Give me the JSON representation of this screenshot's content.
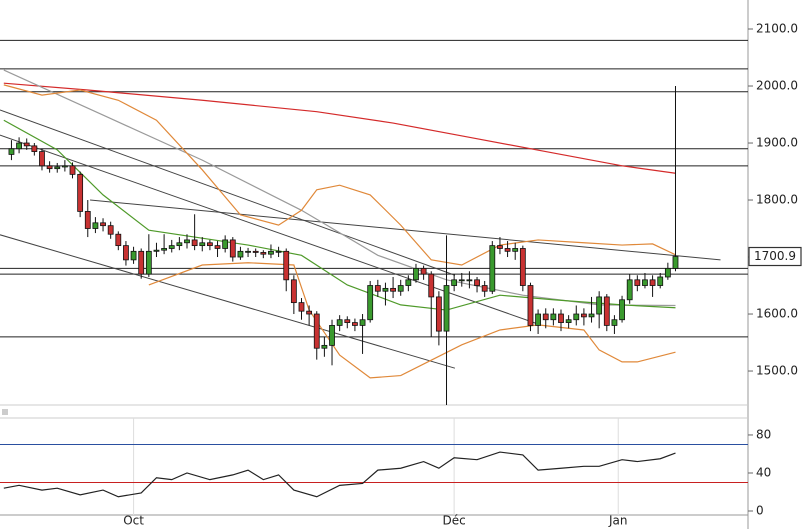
{
  "chart_data": [
    {
      "type": "candlestick",
      "xlim": [
        -1.5,
        96.5
      ],
      "ylim": [
        1440.4,
        2150.9
      ],
      "yticks": [
        {
          "value": 1500,
          "label": "1500.0"
        },
        {
          "value": 1600,
          "label": "1600.0"
        },
        {
          "value": 1700,
          "label": "1700.0"
        },
        {
          "value": 1800,
          "label": "1800.0"
        },
        {
          "value": 1900,
          "label": "1900.0"
        },
        {
          "value": 2000,
          "label": "2000.0"
        },
        {
          "value": 2100,
          "label": "2100.0"
        }
      ],
      "up_color": "#3a9a2e",
      "down_color": "#c83232",
      "open": [
        1880,
        1890,
        1900,
        1895,
        1885,
        1860,
        1855,
        1858,
        1860,
        1845,
        1780,
        1750,
        1760,
        1755,
        1740,
        1720,
        1695,
        1710,
        1670,
        1710,
        1712,
        1715,
        1720,
        1725,
        1730,
        1720,
        1725,
        1720,
        1715,
        1730,
        1700,
        1710,
        1710,
        1708,
        1705,
        1710,
        1710,
        1660,
        1620,
        1605,
        1600,
        1540,
        1545,
        1580,
        1590,
        1585,
        1580,
        1590,
        1650,
        1640,
        1645,
        1640,
        1650,
        1660,
        1680,
        1670,
        1630,
        1570,
        1650,
        1660,
        1660,
        1660,
        1650,
        1640,
        1720,
        1715,
        1710,
        1715,
        1650,
        1580,
        1600,
        1590,
        1600,
        1585,
        1590,
        1600,
        1595,
        1600,
        1630,
        1580,
        1590,
        1625,
        1660,
        1650,
        1660,
        1650,
        1665,
        1680
      ],
      "high": [
        1905,
        1910,
        1908,
        1900,
        1890,
        1868,
        1865,
        1870,
        1866,
        1850,
        1800,
        1770,
        1768,
        1762,
        1745,
        1728,
        1718,
        1715,
        1740,
        1725,
        1740,
        1730,
        1735,
        1740,
        1775,
        1735,
        1730,
        1728,
        1738,
        1735,
        1718,
        1716,
        1715,
        1712,
        1722,
        1718,
        1715,
        1668,
        1628,
        1615,
        1605,
        1560,
        1590,
        1598,
        1596,
        1592,
        1600,
        1658,
        1660,
        1655,
        1665,
        1660,
        1668,
        1688,
        1685,
        1675,
        1640,
        1738,
        1670,
        1672,
        1675,
        1665,
        1658,
        1728,
        1735,
        1728,
        1725,
        1720,
        1655,
        1608,
        1610,
        1610,
        1608,
        1598,
        1615,
        1610,
        1630,
        1640,
        1635,
        1598,
        1632,
        1670,
        1668,
        1672,
        1668,
        1672,
        1690,
        2000
      ],
      "low": [
        1870,
        1882,
        1888,
        1878,
        1852,
        1848,
        1848,
        1850,
        1838,
        1770,
        1735,
        1742,
        1745,
        1732,
        1712,
        1685,
        1688,
        1662,
        1665,
        1700,
        1705,
        1708,
        1712,
        1715,
        1712,
        1710,
        1712,
        1700,
        1708,
        1692,
        1695,
        1700,
        1700,
        1698,
        1698,
        1700,
        1640,
        1600,
        1590,
        1580,
        1520,
        1525,
        1510,
        1570,
        1575,
        1570,
        1530,
        1585,
        1630,
        1615,
        1628,
        1632,
        1640,
        1655,
        1660,
        1560,
        1545,
        1440,
        1640,
        1648,
        1645,
        1638,
        1630,
        1635,
        1705,
        1700,
        1695,
        1640,
        1570,
        1565,
        1575,
        1580,
        1570,
        1575,
        1580,
        1580,
        1585,
        1575,
        1570,
        1565,
        1585,
        1618,
        1640,
        1645,
        1630,
        1645,
        1660,
        1675
      ],
      "close": [
        1890,
        1900,
        1895,
        1885,
        1860,
        1855,
        1858,
        1860,
        1845,
        1780,
        1750,
        1760,
        1755,
        1740,
        1720,
        1695,
        1710,
        1670,
        1710,
        1712,
        1715,
        1720,
        1725,
        1730,
        1720,
        1725,
        1720,
        1715,
        1730,
        1700,
        1710,
        1710,
        1708,
        1705,
        1710,
        1710,
        1660,
        1620,
        1605,
        1600,
        1540,
        1545,
        1580,
        1590,
        1585,
        1580,
        1590,
        1650,
        1640,
        1645,
        1640,
        1650,
        1660,
        1680,
        1670,
        1630,
        1570,
        1650,
        1660,
        1660,
        1660,
        1650,
        1640,
        1720,
        1715,
        1710,
        1715,
        1650,
        1580,
        1600,
        1590,
        1600,
        1585,
        1590,
        1600,
        1595,
        1600,
        1630,
        1580,
        1590,
        1625,
        1660,
        1650,
        1660,
        1650,
        1665,
        1680,
        1700.9
      ],
      "lines": [
        {
          "color": "#d42a2a",
          "x": [
            -1,
            10,
            25,
            40,
            50,
            60,
            70,
            80,
            87
          ],
          "values": [
            2005,
            1993,
            1975,
            1955,
            1935,
            1910,
            1885,
            1860,
            1847
          ]
        },
        {
          "color": "#9a9a9a",
          "x": [
            -1,
            12,
            25,
            38,
            48,
            57,
            67,
            77,
            87
          ],
          "values": [
            2028,
            1949,
            1870,
            1782,
            1703,
            1660,
            1633,
            1616,
            1615
          ]
        },
        {
          "color": "#4f9a2a",
          "x": [
            -1,
            6,
            12,
            18,
            31,
            38,
            44,
            51,
            57,
            64,
            71,
            80,
            87
          ],
          "values": [
            1940,
            1888,
            1809,
            1747,
            1721,
            1703,
            1651,
            1616,
            1607,
            1633,
            1625,
            1616,
            1611
          ]
        },
        {
          "color": "#e0893a",
          "x": [
            -1,
            4,
            9,
            14,
            19,
            25,
            30,
            35,
            38,
            40,
            43,
            47,
            51,
            55,
            59,
            64,
            69,
            75,
            80,
            84,
            87
          ],
          "values": [
            2002,
            1984,
            1993,
            1975,
            1940,
            1853,
            1774,
            1756,
            1782,
            1818,
            1826,
            1809,
            1756,
            1695,
            1686,
            1721,
            1730,
            1725,
            1721,
            1723,
            1704
          ]
        },
        {
          "color": "#e0893a",
          "x": [
            18,
            25,
            31,
            37,
            39,
            43,
            47,
            51,
            55,
            59,
            64,
            69,
            75,
            77,
            80,
            82,
            87
          ],
          "values": [
            1651,
            1686,
            1690,
            1686,
            1607,
            1528,
            1488,
            1492,
            1519,
            1546,
            1572,
            1581,
            1572,
            1537,
            1516,
            1516,
            1533
          ]
        }
      ],
      "hlines": [
        2080,
        2030,
        1990,
        1890,
        1860,
        1680,
        1670,
        1560
      ],
      "trendlines": [
        {
          "x": [
            -1.5,
            58.1
          ],
          "values": [
            1958,
            1668
          ]
        },
        {
          "x": [
            -1.5,
            58.1
          ],
          "values": [
            1739,
            1505
          ]
        },
        {
          "x": [
            -1.5,
            69.3
          ],
          "values": [
            1914,
            1581
          ]
        },
        {
          "x": [
            10.3,
            92.9
          ],
          "values": [
            1800,
            1695
          ]
        }
      ]
    },
    {
      "type": "line",
      "xlim": [
        -1.5,
        96.5
      ],
      "ylim": [
        -4.2,
        101
      ],
      "yticks": [
        0,
        40,
        80
      ],
      "xticks": [
        {
          "value": 16,
          "label": "Oct"
        },
        {
          "value": 58,
          "label": "Déc"
        },
        {
          "value": 79.5,
          "label": "Jan"
        }
      ],
      "color": "#222222",
      "x": [
        -1,
        1,
        4,
        6,
        9,
        12,
        14,
        17,
        19,
        21,
        23,
        26,
        29,
        31,
        33,
        35,
        37,
        40,
        43,
        46,
        48,
        51,
        54,
        56,
        58,
        61,
        64,
        67,
        69,
        72,
        75,
        77,
        80,
        82,
        85,
        87
      ],
      "values": [
        24,
        27,
        22,
        24,
        17,
        22,
        15,
        19,
        35,
        33,
        40,
        33,
        38,
        43,
        33,
        38,
        22,
        15,
        27,
        29,
        43,
        45,
        52,
        45,
        56,
        54,
        62,
        59,
        43,
        45,
        47,
        47,
        54,
        52,
        55,
        61
      ],
      "levels": [
        {
          "value": 70,
          "color": "#2a4fa0"
        },
        {
          "value": 30,
          "color": "#c82020"
        }
      ]
    }
  ]
}
